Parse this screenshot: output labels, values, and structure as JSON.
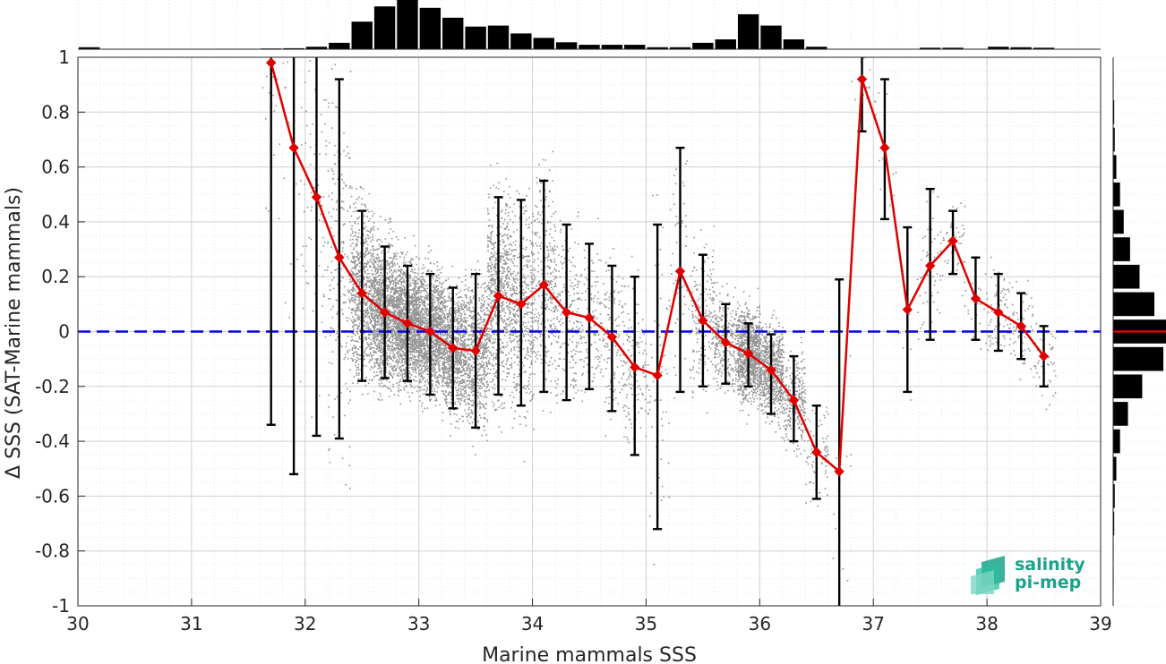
{
  "chart_data": {
    "type": "scatter",
    "xlabel": "Marine mammals SSS",
    "ylabel": "Δ SSS (SAT-Marine mammals)",
    "xlim": [
      30,
      39
    ],
    "ylim": [
      -1,
      1
    ],
    "x_ticks": [
      "30",
      "31",
      "32",
      "33",
      "34",
      "35",
      "36",
      "37",
      "38",
      "39"
    ],
    "y_ticks": [
      "-1",
      "-0.8",
      "-0.6",
      "-0.4",
      "-0.2",
      "0",
      "0.2",
      "0.4",
      "0.6",
      "0.8",
      "1"
    ],
    "grid": true,
    "zero_line": {
      "y": 0,
      "color": "#0000ee",
      "style": "dashed"
    },
    "bin_means": {
      "color": "#e00000",
      "marker": "diamond",
      "x": [
        31.7,
        31.9,
        32.1,
        32.3,
        32.5,
        32.7,
        32.9,
        33.1,
        33.3,
        33.5,
        33.7,
        33.9,
        34.1,
        34.3,
        34.5,
        34.7,
        34.9,
        35.1,
        35.3,
        35.5,
        35.7,
        35.9,
        36.1,
        36.3,
        36.5,
        36.7,
        36.9,
        37.1,
        37.3,
        37.5,
        37.7,
        37.9,
        38.1,
        38.3,
        38.5
      ],
      "y": [
        0.98,
        0.67,
        0.49,
        0.27,
        0.14,
        0.07,
        0.03,
        0.0,
        -0.06,
        -0.07,
        0.13,
        0.1,
        0.17,
        0.07,
        0.05,
        -0.02,
        -0.13,
        -0.16,
        0.22,
        0.04,
        -0.04,
        -0.08,
        -0.14,
        -0.25,
        -0.44,
        -0.51,
        0.92,
        0.67,
        0.08,
        0.24,
        0.33,
        0.12,
        0.07,
        0.02,
        -0.09
      ]
    },
    "error_bars": {
      "color": "#000000",
      "lower": [
        -0.34,
        -0.52,
        -0.38,
        -0.39,
        -0.18,
        -0.17,
        -0.18,
        -0.23,
        -0.28,
        -0.35,
        -0.23,
        -0.27,
        -0.22,
        -0.25,
        -0.21,
        -0.29,
        -0.45,
        -0.72,
        -0.22,
        -0.2,
        -0.19,
        -0.2,
        -0.3,
        -0.4,
        -0.61,
        -1.0,
        0.73,
        0.41,
        -0.22,
        -0.03,
        0.21,
        -0.03,
        -0.07,
        -0.1,
        -0.2
      ],
      "upper": [
        1.0,
        1.0,
        1.0,
        0.92,
        0.44,
        0.31,
        0.24,
        0.21,
        0.16,
        0.21,
        0.49,
        0.48,
        0.55,
        0.39,
        0.32,
        0.24,
        0.2,
        0.39,
        0.67,
        0.28,
        0.1,
        0.03,
        -0.01,
        -0.09,
        -0.27,
        0.19,
        1.0,
        0.92,
        0.38,
        0.52,
        0.44,
        0.27,
        0.21,
        0.14,
        0.02
      ]
    },
    "scatter_color": "#888888",
    "top_histogram": {
      "x": [
        30.1,
        30.3,
        30.5,
        30.7,
        30.9,
        31.1,
        31.3,
        31.5,
        31.7,
        31.9,
        32.1,
        32.3,
        32.5,
        32.7,
        32.9,
        33.1,
        33.3,
        33.5,
        33.7,
        33.9,
        34.1,
        34.3,
        34.5,
        34.7,
        34.9,
        35.1,
        35.3,
        35.5,
        35.7,
        35.9,
        36.1,
        36.3,
        36.5,
        36.7,
        36.9,
        37.1,
        37.3,
        37.5,
        37.7,
        37.9,
        38.1,
        38.3,
        38.5,
        38.7,
        38.9
      ],
      "relative_counts": [
        0.04,
        0.005,
        0.005,
        0.005,
        0.005,
        0.005,
        0.01,
        0.01,
        0.015,
        0.02,
        0.05,
        0.13,
        0.56,
        0.87,
        1.0,
        0.84,
        0.64,
        0.46,
        0.48,
        0.32,
        0.23,
        0.14,
        0.09,
        0.09,
        0.09,
        0.04,
        0.04,
        0.13,
        0.2,
        0.71,
        0.48,
        0.2,
        0.05,
        0.005,
        0.005,
        0.005,
        0.005,
        0.03,
        0.03,
        0.01,
        0.05,
        0.04,
        0.03,
        0.005,
        0.005
      ]
    },
    "right_histogram": {
      "y": [
        -0.9,
        -0.8,
        -0.7,
        -0.6,
        -0.5,
        -0.4,
        -0.3,
        -0.2,
        -0.1,
        0.0,
        0.1,
        0.2,
        0.3,
        0.4,
        0.5,
        0.6,
        0.7,
        0.8,
        0.9
      ],
      "relative_counts": [
        0.01,
        0.01,
        0.02,
        0.03,
        0.06,
        0.13,
        0.28,
        0.55,
        0.95,
        1.0,
        0.78,
        0.5,
        0.32,
        0.2,
        0.13,
        0.06,
        0.03,
        0.02,
        0.01
      ],
      "mean_line_color": "#e00000"
    }
  },
  "logo": {
    "line1": "salinity",
    "line2": "pi-mep"
  }
}
